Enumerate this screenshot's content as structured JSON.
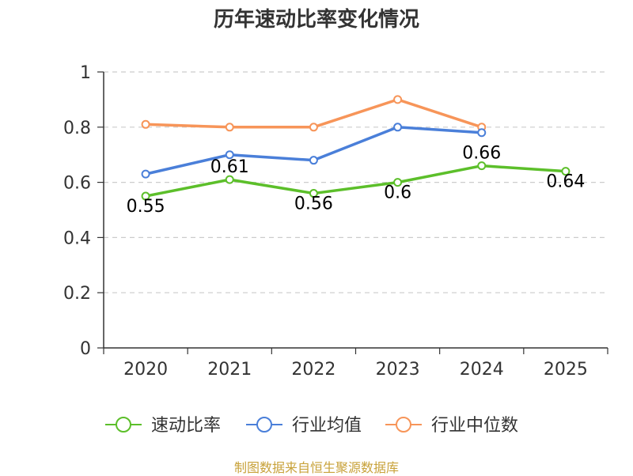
{
  "chart_data": {
    "type": "line",
    "title": "历年速动比率变化情况",
    "categories": [
      "2020",
      "2021",
      "2022",
      "2023",
      "2024",
      "2025"
    ],
    "ylim": [
      0,
      1
    ],
    "yticks": [
      0,
      0.2,
      0.4,
      0.6,
      0.8,
      1
    ],
    "ytick_labels": [
      "0",
      "0.2",
      "0.4",
      "0.6",
      "0.8",
      "1"
    ],
    "grid": true,
    "legend_position": "bottom-center",
    "series": [
      {
        "name": "速动比率",
        "color": "#5cbf2a",
        "values": [
          0.55,
          0.61,
          0.56,
          0.6,
          0.66,
          0.64
        ],
        "labels": [
          "0.55",
          "0.61",
          "0.56",
          "0.6",
          "0.66",
          "0.64"
        ]
      },
      {
        "name": "行业均值",
        "color": "#4a7fd9",
        "values": [
          0.63,
          0.7,
          0.68,
          0.8,
          0.78,
          null
        ]
      },
      {
        "name": "行业中位数",
        "color": "#f79559",
        "values": [
          0.81,
          0.8,
          0.8,
          0.9,
          0.8,
          null
        ]
      }
    ]
  },
  "source": "制图数据来自恒生聚源数据库"
}
